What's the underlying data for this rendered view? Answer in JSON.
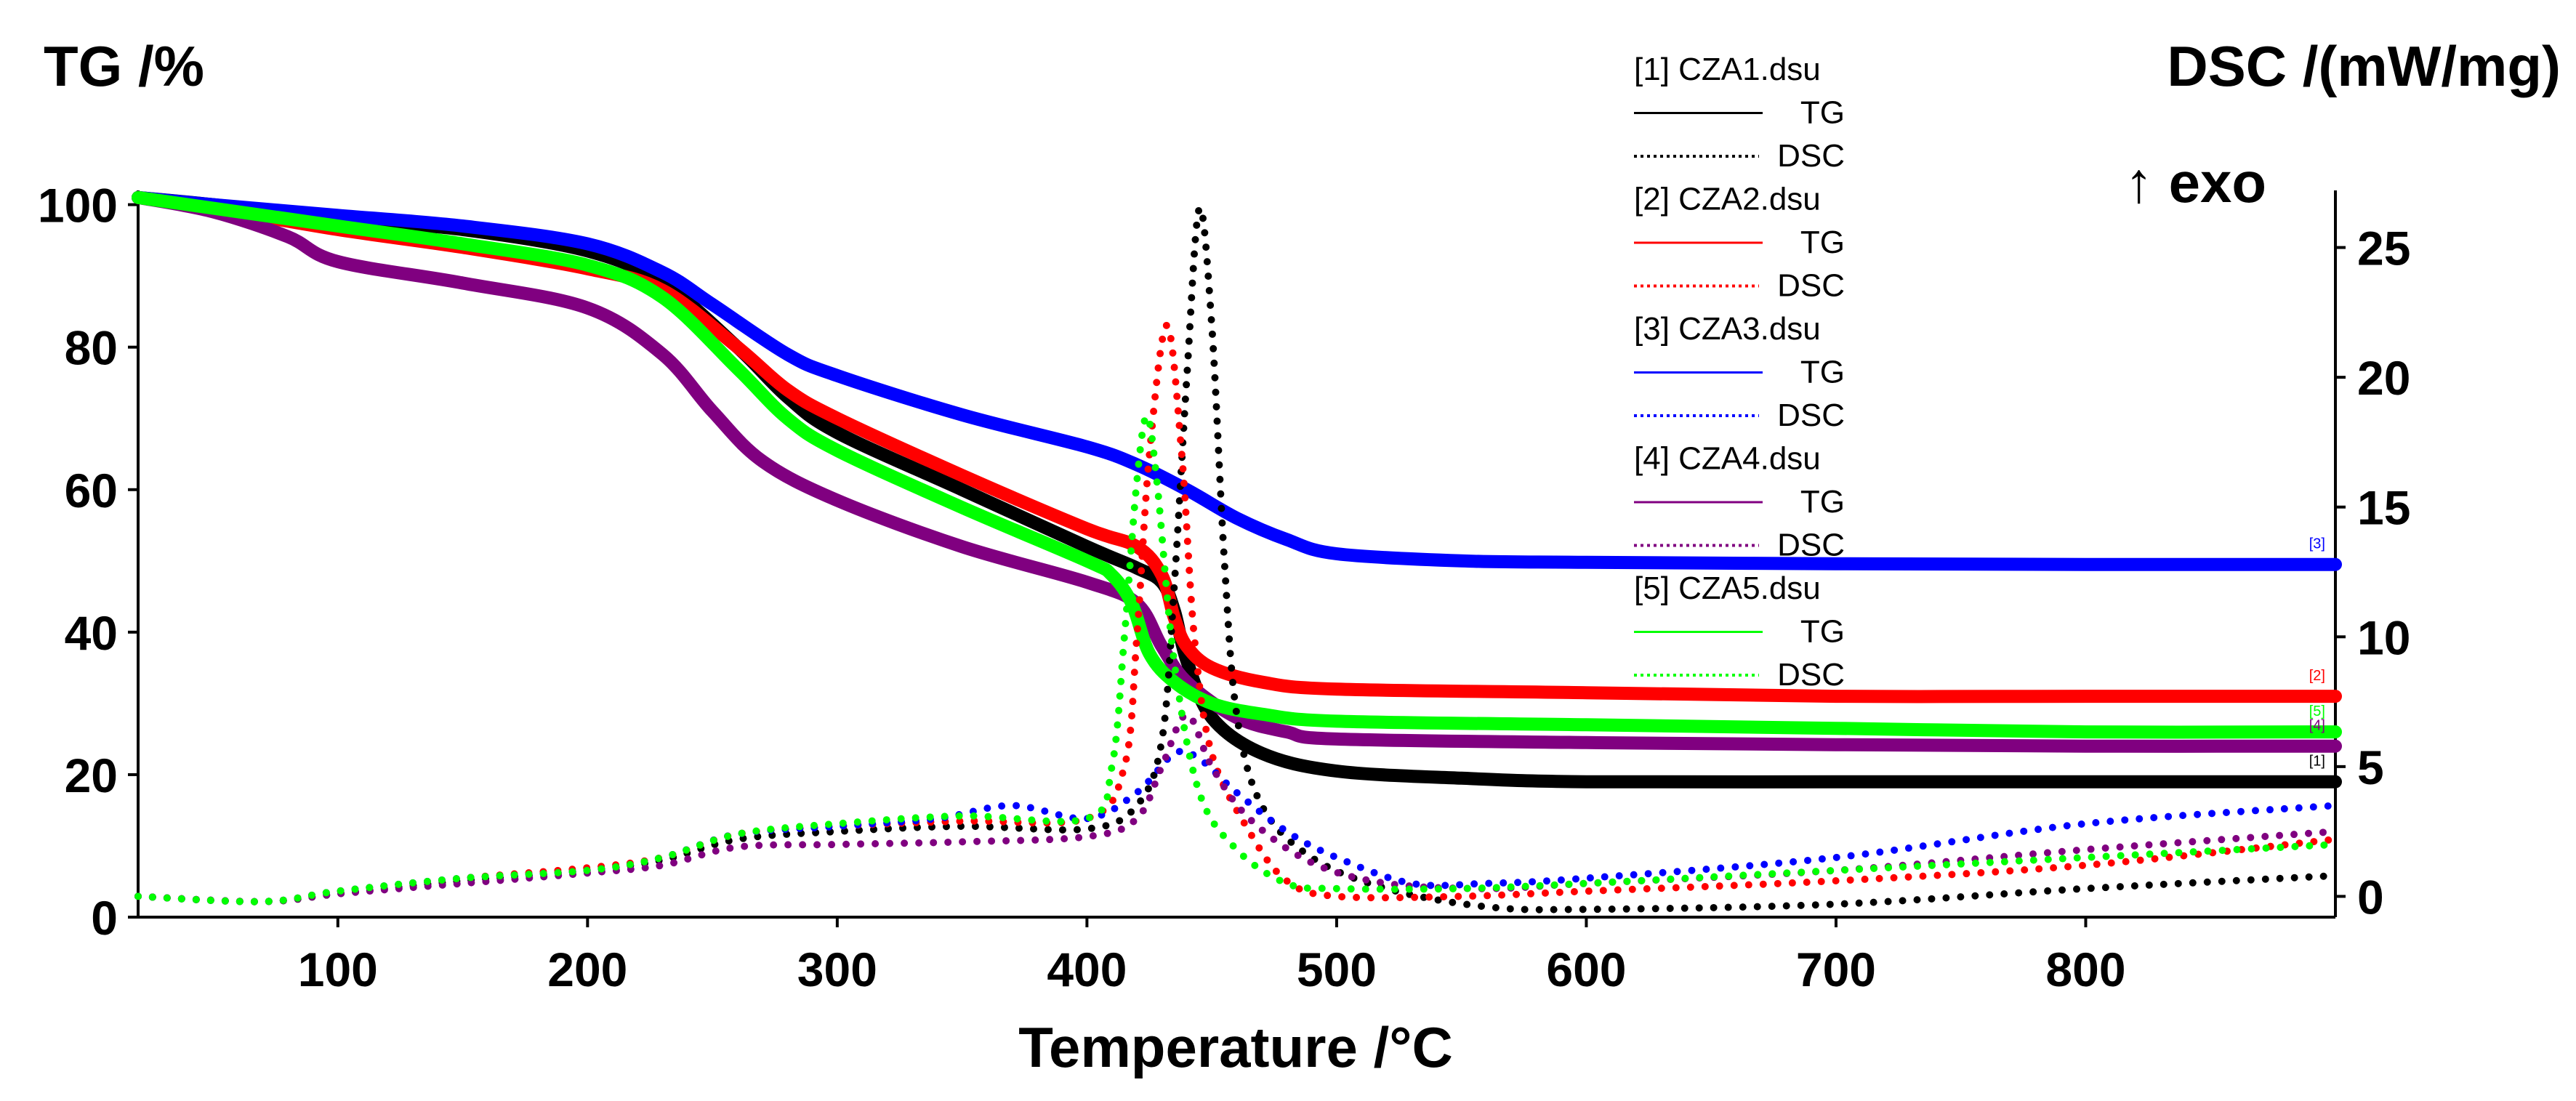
{
  "chart_data": {
    "type": "line",
    "xlabel": "Temperature /°C",
    "ylabel_left": "TG /%",
    "ylabel_right": "DSC /(mW/mg)",
    "exo_label": "↑ exo",
    "xlim": [
      20,
      900
    ],
    "ylim_left": [
      0,
      102
    ],
    "ylim_right": [
      -0.8,
      27.2
    ],
    "x_ticks": [
      100,
      200,
      300,
      400,
      500,
      600,
      700,
      800
    ],
    "y_left_ticks": [
      0,
      20,
      40,
      60,
      80,
      100
    ],
    "y_right_ticks": [
      0,
      5,
      10,
      15,
      20,
      25
    ],
    "samples": [
      {
        "file": "[1] CZA1.dsu",
        "tag": "[1]",
        "color": "#000000",
        "tg_label": "TG",
        "dsc_label": "DSC",
        "tg": [
          [
            20,
            101
          ],
          [
            50,
            100
          ],
          [
            100,
            98
          ],
          [
            150,
            96.5
          ],
          [
            200,
            93.5
          ],
          [
            230,
            89
          ],
          [
            260,
            80
          ],
          [
            280,
            73
          ],
          [
            300,
            68
          ],
          [
            350,
            60
          ],
          [
            400,
            52
          ],
          [
            420,
            49
          ],
          [
            430,
            47
          ],
          [
            435,
            43
          ],
          [
            440,
            36
          ],
          [
            450,
            28
          ],
          [
            470,
            23
          ],
          [
            500,
            20.5
          ],
          [
            550,
            19.5
          ],
          [
            600,
            19
          ],
          [
            700,
            19
          ],
          [
            800,
            19
          ],
          [
            900,
            19
          ]
        ],
        "dsc": [
          [
            20,
            0
          ],
          [
            70,
            -0.2
          ],
          [
            100,
            0.1
          ],
          [
            150,
            0.6
          ],
          [
            200,
            1
          ],
          [
            230,
            1.4
          ],
          [
            260,
            2.2
          ],
          [
            300,
            2.5
          ],
          [
            350,
            2.7
          ],
          [
            400,
            2.6
          ],
          [
            420,
            3.5
          ],
          [
            430,
            6
          ],
          [
            435,
            12
          ],
          [
            440,
            20
          ],
          [
            445,
            26.5
          ],
          [
            450,
            22
          ],
          [
            455,
            13
          ],
          [
            460,
            7
          ],
          [
            470,
            3.5
          ],
          [
            490,
            1.5
          ],
          [
            520,
            0.3
          ],
          [
            560,
            -0.4
          ],
          [
            600,
            -0.5
          ],
          [
            700,
            -0.3
          ],
          [
            800,
            0.3
          ],
          [
            900,
            0.8
          ]
        ]
      },
      {
        "file": "[2] CZA2.dsu",
        "tag": "[2]",
        "color": "#ff0000",
        "tg_label": "TG",
        "dsc_label": "DSC",
        "tg": [
          [
            20,
            101
          ],
          [
            50,
            99.5
          ],
          [
            100,
            96.5
          ],
          [
            150,
            94
          ],
          [
            200,
            91
          ],
          [
            230,
            88
          ],
          [
            260,
            80
          ],
          [
            280,
            74
          ],
          [
            300,
            70
          ],
          [
            350,
            62
          ],
          [
            400,
            54.5
          ],
          [
            420,
            52
          ],
          [
            430,
            48
          ],
          [
            435,
            42
          ],
          [
            440,
            38
          ],
          [
            450,
            35
          ],
          [
            470,
            33
          ],
          [
            500,
            32
          ],
          [
            600,
            31.5
          ],
          [
            700,
            31
          ],
          [
            800,
            31
          ],
          [
            900,
            31
          ]
        ],
        "dsc": [
          [
            20,
            0
          ],
          [
            70,
            -0.2
          ],
          [
            100,
            0.2
          ],
          [
            150,
            0.7
          ],
          [
            200,
            1.1
          ],
          [
            230,
            1.5
          ],
          [
            260,
            2.4
          ],
          [
            300,
            2.7
          ],
          [
            350,
            2.9
          ],
          [
            400,
            3
          ],
          [
            415,
            5
          ],
          [
            420,
            10
          ],
          [
            425,
            17
          ],
          [
            432,
            22
          ],
          [
            438,
            17
          ],
          [
            443,
            10
          ],
          [
            450,
            5.5
          ],
          [
            465,
            2.5
          ],
          [
            480,
            0.6
          ],
          [
            500,
            0
          ],
          [
            550,
            0
          ],
          [
            600,
            0.2
          ],
          [
            700,
            0.6
          ],
          [
            800,
            1.2
          ],
          [
            900,
            2.2
          ]
        ]
      },
      {
        "file": "[3] CZA3.dsu",
        "tag": "[3]",
        "color": "#0000ff",
        "tg_label": "TG",
        "dsc_label": "DSC",
        "tg": [
          [
            20,
            101
          ],
          [
            50,
            100
          ],
          [
            100,
            98.5
          ],
          [
            150,
            97
          ],
          [
            200,
            94.5
          ],
          [
            230,
            90.5
          ],
          [
            250,
            86
          ],
          [
            280,
            79
          ],
          [
            300,
            76
          ],
          [
            350,
            70.5
          ],
          [
            400,
            66
          ],
          [
            420,
            63.5
          ],
          [
            440,
            60
          ],
          [
            460,
            56
          ],
          [
            480,
            53
          ],
          [
            500,
            51
          ],
          [
            550,
            50
          ],
          [
            600,
            49.8
          ],
          [
            700,
            49.6
          ],
          [
            800,
            49.5
          ],
          [
            900,
            49.5
          ]
        ],
        "dsc": [
          [
            20,
            0
          ],
          [
            70,
            -0.2
          ],
          [
            100,
            0.2
          ],
          [
            150,
            0.7
          ],
          [
            200,
            1
          ],
          [
            230,
            1.5
          ],
          [
            260,
            2.4
          ],
          [
            300,
            2.7
          ],
          [
            340,
            3
          ],
          [
            370,
            3.5
          ],
          [
            400,
            3
          ],
          [
            420,
            4
          ],
          [
            435,
            5.5
          ],
          [
            445,
            5.3
          ],
          [
            460,
            4
          ],
          [
            480,
            2.5
          ],
          [
            500,
            1.5
          ],
          [
            530,
            0.5
          ],
          [
            560,
            0.5
          ],
          [
            600,
            0.7
          ],
          [
            700,
            1.5
          ],
          [
            800,
            2.8
          ],
          [
            900,
            3.5
          ]
        ]
      },
      {
        "file": "[4] CZA4.dsu",
        "tag": "[4]",
        "color": "#800080",
        "tg_label": "TG",
        "dsc_label": "DSC",
        "tg": [
          [
            20,
            101
          ],
          [
            50,
            99
          ],
          [
            80,
            95.5
          ],
          [
            100,
            92
          ],
          [
            150,
            89
          ],
          [
            200,
            85.5
          ],
          [
            230,
            79
          ],
          [
            250,
            71
          ],
          [
            270,
            64
          ],
          [
            300,
            58.5
          ],
          [
            350,
            52
          ],
          [
            400,
            47
          ],
          [
            420,
            44
          ],
          [
            430,
            38
          ],
          [
            440,
            33
          ],
          [
            460,
            28
          ],
          [
            480,
            26
          ],
          [
            500,
            25
          ],
          [
            600,
            24.5
          ],
          [
            700,
            24.2
          ],
          [
            800,
            24
          ],
          [
            900,
            24
          ]
        ],
        "dsc": [
          [
            20,
            0
          ],
          [
            70,
            -0.2
          ],
          [
            100,
            0.1
          ],
          [
            150,
            0.5
          ],
          [
            200,
            0.9
          ],
          [
            230,
            1.2
          ],
          [
            260,
            1.9
          ],
          [
            300,
            2
          ],
          [
            350,
            2.1
          ],
          [
            400,
            2.3
          ],
          [
            420,
            3
          ],
          [
            430,
            5
          ],
          [
            440,
            7
          ],
          [
            450,
            5
          ],
          [
            465,
            3
          ],
          [
            490,
            1.3
          ],
          [
            520,
            0.5
          ],
          [
            560,
            0.3
          ],
          [
            600,
            0.5
          ],
          [
            700,
            1
          ],
          [
            800,
            1.8
          ],
          [
            900,
            2.5
          ]
        ]
      },
      {
        "file": "[5] CZA5.dsu",
        "tag": "[5]",
        "color": "#00ff00",
        "tg_label": "TG",
        "dsc_label": "DSC",
        "tg": [
          [
            20,
            101
          ],
          [
            50,
            99.5
          ],
          [
            100,
            97
          ],
          [
            150,
            94.5
          ],
          [
            200,
            91.5
          ],
          [
            230,
            87
          ],
          [
            260,
            77
          ],
          [
            280,
            70
          ],
          [
            300,
            65.5
          ],
          [
            350,
            57.5
          ],
          [
            400,
            50
          ],
          [
            410,
            48
          ],
          [
            418,
            44
          ],
          [
            425,
            37
          ],
          [
            435,
            33
          ],
          [
            450,
            30
          ],
          [
            470,
            28.5
          ],
          [
            500,
            27.5
          ],
          [
            600,
            27
          ],
          [
            700,
            26.5
          ],
          [
            800,
            26
          ],
          [
            900,
            26
          ]
        ],
        "dsc": [
          [
            20,
            0
          ],
          [
            70,
            -0.2
          ],
          [
            100,
            0.2
          ],
          [
            150,
            0.7
          ],
          [
            200,
            1
          ],
          [
            230,
            1.5
          ],
          [
            260,
            2.4
          ],
          [
            300,
            2.8
          ],
          [
            350,
            3.1
          ],
          [
            400,
            3
          ],
          [
            410,
            5
          ],
          [
            415,
            10
          ],
          [
            420,
            16
          ],
          [
            424,
            18.5
          ],
          [
            428,
            16
          ],
          [
            435,
            9
          ],
          [
            445,
            4
          ],
          [
            460,
            1.8
          ],
          [
            480,
            0.5
          ],
          [
            500,
            0.3
          ],
          [
            550,
            0.3
          ],
          [
            600,
            0.5
          ],
          [
            700,
            1
          ],
          [
            800,
            1.5
          ],
          [
            900,
            2
          ]
        ]
      }
    ]
  }
}
